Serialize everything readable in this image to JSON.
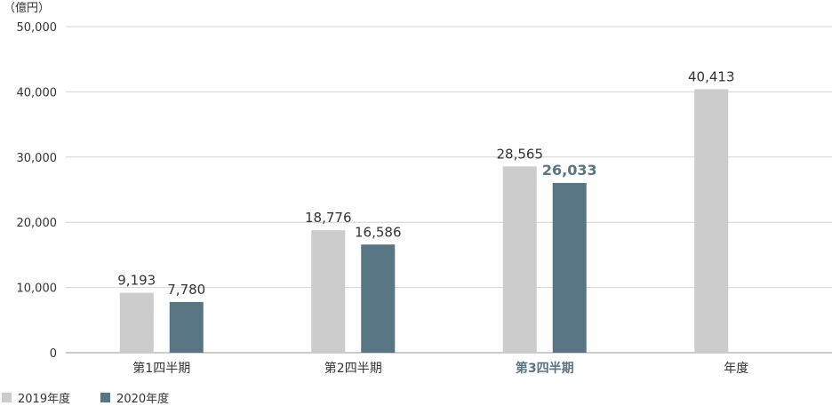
{
  "chart_data": {
    "type": "bar",
    "unit_label": "（億円）",
    "categories": [
      "第1四半期",
      "第2四半期",
      "第3四半期",
      "年度"
    ],
    "highlight_category_index": 2,
    "ylim": [
      0,
      50000
    ],
    "yticks": [
      0,
      10000,
      20000,
      30000,
      40000,
      50000
    ],
    "ytick_labels": [
      "0",
      "10,000",
      "20,000",
      "30,000",
      "40,000",
      "50,000"
    ],
    "grid": true,
    "legend_position": "bottom-left",
    "series": [
      {
        "name": "2019年度",
        "color": "#cccccc",
        "values": [
          9193,
          18776,
          28565,
          40413
        ],
        "labels": [
          "9,193",
          "18,776",
          "28,565",
          "40,413"
        ]
      },
      {
        "name": "2020年度",
        "color": "#587583",
        "values": [
          7780,
          16586,
          26033,
          null
        ],
        "labels": [
          "7,780",
          "16,586",
          "26,033",
          ""
        ]
      }
    ],
    "highlight_color": "#587583"
  }
}
